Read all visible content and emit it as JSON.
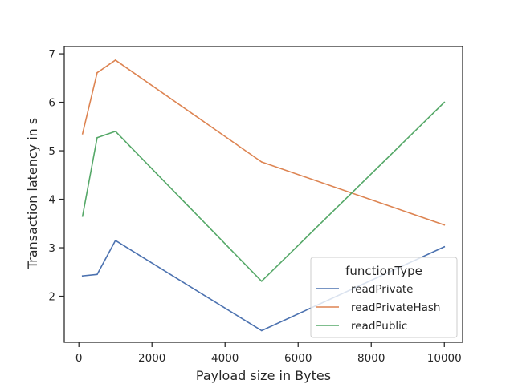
{
  "chart_data": {
    "type": "line",
    "title": "",
    "xlabel": "Payload size in Bytes",
    "ylabel": "Transaction latency in s",
    "xlim": [
      -400,
      10500
    ],
    "ylim": [
      1.05,
      7.15
    ],
    "xticks": [
      0,
      2000,
      4000,
      6000,
      8000,
      10000
    ],
    "xtick_labels": [
      "0",
      "2000",
      "4000",
      "6000",
      "8000",
      "10000"
    ],
    "yticks": [
      2,
      3,
      4,
      5,
      6,
      7
    ],
    "ytick_labels": [
      "2",
      "3",
      "4",
      "5",
      "6",
      "7"
    ],
    "grid": false,
    "legend": {
      "title": "functionType",
      "placement": "lower-right"
    },
    "series": [
      {
        "name": "readPrivate",
        "color": "#4c72b0",
        "x": [
          100,
          500,
          1000,
          5000,
          10000
        ],
        "y": [
          2.42,
          2.45,
          3.15,
          1.29,
          3.02
        ]
      },
      {
        "name": "readPrivateHash",
        "color": "#dd8452",
        "x": [
          100,
          500,
          1000,
          5000,
          10000
        ],
        "y": [
          5.35,
          6.61,
          6.87,
          4.77,
          3.47
        ]
      },
      {
        "name": "readPublic",
        "color": "#55a868",
        "x": [
          100,
          500,
          1000,
          5000,
          10000
        ],
        "y": [
          3.65,
          5.27,
          5.4,
          2.31,
          6.0
        ]
      }
    ]
  }
}
